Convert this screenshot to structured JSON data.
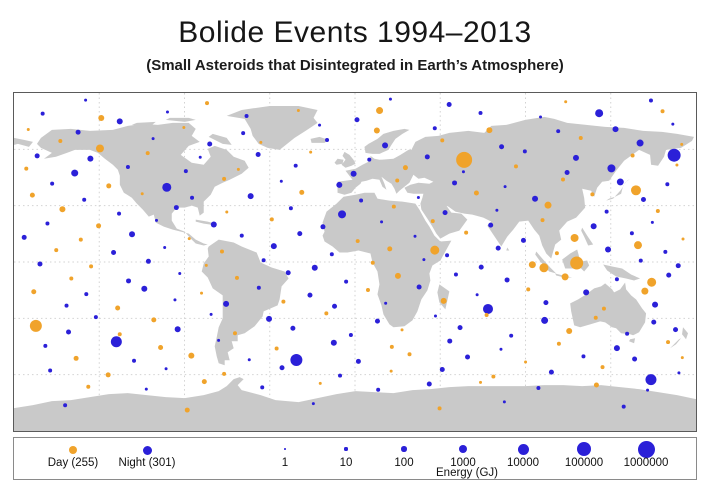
{
  "header": {
    "title": "Bolide Events 1994–2013",
    "subtitle": "(Small Asteroids that Disintegrated in Earth’s Atmosphere)"
  },
  "legend": {
    "day_label": "Day (255)",
    "night_label": "Night (301)",
    "day_color": "#F0A32B",
    "night_color": "#2B20D8",
    "day_r": 4,
    "night_r": 4.5,
    "energy_label": "Energy (GJ)",
    "energy_scale": [
      {
        "label": "1",
        "r": 0.9
      },
      {
        "label": "10",
        "r": 1.6
      },
      {
        "label": "100",
        "r": 2.7
      },
      {
        "label": "1000",
        "r": 4
      },
      {
        "label": "10000",
        "r": 5.5
      },
      {
        "label": "100000",
        "r": 7
      },
      {
        "label": "1000000",
        "r": 8.5
      }
    ]
  },
  "chart_data": {
    "type": "scatter",
    "title": "Bolide Events 1994–2013",
    "subtitle": "(Small Asteroids that Disintegrated in Earth’s Atmosphere)",
    "basemap": "equirectangular world map, longitude -180..180 maps to x 0..100%, latitude 90..-90 maps to y 0..100%",
    "land_color": "#c9c9c9",
    "grid": {
      "on": true,
      "lat_spacing_deg": 30,
      "lon_spacing_deg": 45
    },
    "series": [
      {
        "name": "Day",
        "count": 255,
        "color": "#F0A32B"
      },
      {
        "name": "Night",
        "count": 301,
        "color": "#2B20D8"
      }
    ],
    "size_encoding": {
      "label": "Energy (GJ)",
      "ticks": [
        1,
        10,
        100,
        1000,
        10000,
        100000,
        1000000
      ]
    },
    "points_format": "[x_pct, y_pct, radius_px, type] where type 0=Day(orange) 1=Night(blue); positions estimated from pixels",
    "points": [
      [
        10.5,
        2.1,
        1.5,
        1
      ],
      [
        28.3,
        3.0,
        2,
        0
      ],
      [
        55.2,
        1.8,
        1.5,
        1
      ],
      [
        63.8,
        3.4,
        2.5,
        1
      ],
      [
        80.9,
        2.6,
        1.5,
        0
      ],
      [
        93.4,
        2.2,
        2,
        1
      ],
      [
        4.2,
        6.1,
        2,
        1
      ],
      [
        12.8,
        7.4,
        3,
        0
      ],
      [
        22.5,
        5.6,
        1.5,
        1
      ],
      [
        34.1,
        6.8,
        2,
        1
      ],
      [
        41.7,
        5.2,
        1.5,
        0
      ],
      [
        50.3,
        7.9,
        2.5,
        1
      ],
      [
        53.6,
        5.2,
        3.5,
        0
      ],
      [
        68.4,
        5.9,
        2,
        1
      ],
      [
        77.2,
        7.1,
        1.5,
        1
      ],
      [
        85.8,
        6.0,
        4,
        1
      ],
      [
        95.1,
        5.4,
        2,
        0
      ],
      [
        2.1,
        10.8,
        1.5,
        0
      ],
      [
        9.4,
        11.6,
        2.5,
        1
      ],
      [
        15.5,
        8.4,
        3,
        1
      ],
      [
        24.9,
        10.2,
        1.5,
        0
      ],
      [
        33.6,
        11.9,
        2,
        1
      ],
      [
        44.8,
        9.5,
        1.5,
        1
      ],
      [
        53.2,
        11.1,
        3,
        0
      ],
      [
        61.7,
        10.4,
        2,
        1
      ],
      [
        69.7,
        11.0,
        3,
        0
      ],
      [
        79.8,
        11.3,
        2,
        1
      ],
      [
        88.2,
        10.7,
        3,
        1
      ],
      [
        96.6,
        9.2,
        1.5,
        1
      ],
      [
        6.8,
        14.2,
        2,
        0
      ],
      [
        12.6,
        16.4,
        4,
        0
      ],
      [
        20.4,
        13.5,
        1.5,
        1
      ],
      [
        28.7,
        15.1,
        2.5,
        1
      ],
      [
        36.2,
        14.6,
        1.5,
        0
      ],
      [
        45.9,
        13.9,
        2,
        1
      ],
      [
        54.4,
        15.5,
        3,
        1
      ],
      [
        62.8,
        14.0,
        2,
        0
      ],
      [
        71.5,
        15.9,
        2.5,
        1
      ],
      [
        83.1,
        13.3,
        2,
        0
      ],
      [
        91.8,
        14.8,
        3.5,
        1
      ],
      [
        97.9,
        15.2,
        1.5,
        0
      ],
      [
        3.4,
        18.6,
        2.5,
        1
      ],
      [
        11.2,
        19.4,
        3,
        1
      ],
      [
        19.6,
        17.8,
        2,
        0
      ],
      [
        27.3,
        19.0,
        1.5,
        1
      ],
      [
        35.8,
        18.2,
        2.5,
        1
      ],
      [
        43.5,
        17.5,
        1.5,
        0
      ],
      [
        52.1,
        19.7,
        2,
        1
      ],
      [
        60.6,
        18.9,
        2.5,
        1
      ],
      [
        66.0,
        19.8,
        8,
        0
      ],
      [
        74.9,
        17.3,
        2,
        1
      ],
      [
        82.4,
        19.2,
        3,
        1
      ],
      [
        90.7,
        18.5,
        2,
        0
      ],
      [
        96.8,
        18.4,
        6.5,
        1
      ],
      [
        1.8,
        22.4,
        2,
        0
      ],
      [
        8.9,
        23.7,
        3.5,
        1
      ],
      [
        16.7,
        21.9,
        2,
        1
      ],
      [
        25.2,
        23.1,
        2,
        1
      ],
      [
        32.9,
        22.6,
        1.5,
        0
      ],
      [
        41.3,
        21.5,
        2,
        1
      ],
      [
        49.8,
        23.9,
        3,
        1
      ],
      [
        57.4,
        22.1,
        2.5,
        0
      ],
      [
        65.9,
        23.3,
        1.5,
        1
      ],
      [
        73.6,
        21.7,
        2,
        0
      ],
      [
        81.1,
        23.5,
        2.5,
        1
      ],
      [
        87.6,
        22.3,
        4,
        1
      ],
      [
        97.2,
        21.3,
        1.5,
        0
      ],
      [
        5.6,
        26.8,
        2,
        1
      ],
      [
        13.9,
        27.5,
        2.5,
        0
      ],
      [
        22.4,
        27.9,
        4.5,
        1
      ],
      [
        30.8,
        25.4,
        2,
        0
      ],
      [
        39.2,
        26.1,
        1.5,
        1
      ],
      [
        47.7,
        27.2,
        3,
        1
      ],
      [
        56.2,
        25.9,
        2,
        0
      ],
      [
        64.6,
        26.6,
        2.5,
        1
      ],
      [
        72.0,
        27.7,
        1.5,
        1
      ],
      [
        80.5,
        25.6,
        2,
        0
      ],
      [
        88.9,
        26.3,
        3.5,
        1
      ],
      [
        91.2,
        28.8,
        5,
        0
      ],
      [
        95.8,
        27.0,
        2,
        1
      ],
      [
        2.7,
        30.2,
        2.5,
        0
      ],
      [
        10.3,
        31.6,
        2,
        1
      ],
      [
        18.8,
        29.8,
        1.5,
        0
      ],
      [
        26.1,
        31.0,
        2,
        1
      ],
      [
        34.7,
        30.5,
        3,
        1
      ],
      [
        42.2,
        29.4,
        2.5,
        0
      ],
      [
        50.9,
        31.8,
        2,
        1
      ],
      [
        59.3,
        30.9,
        1.5,
        1
      ],
      [
        67.8,
        29.6,
        2.5,
        0
      ],
      [
        76.4,
        31.3,
        3,
        1
      ],
      [
        84.8,
        30.0,
        2,
        0
      ],
      [
        92.3,
        31.5,
        2.5,
        1
      ],
      [
        7.1,
        34.4,
        3,
        0
      ],
      [
        15.4,
        35.7,
        2,
        1
      ],
      [
        23.8,
        33.9,
        2.5,
        1
      ],
      [
        31.2,
        35.2,
        1.5,
        0
      ],
      [
        40.6,
        34.1,
        2,
        1
      ],
      [
        48.1,
        35.9,
        4,
        1
      ],
      [
        55.7,
        33.6,
        2,
        0
      ],
      [
        63.2,
        35.4,
        2.5,
        1
      ],
      [
        70.8,
        34.7,
        1.5,
        1
      ],
      [
        78.3,
        33.2,
        3.5,
        0
      ],
      [
        86.9,
        35.1,
        2,
        1
      ],
      [
        94.4,
        34.9,
        2,
        0
      ],
      [
        4.9,
        38.6,
        2,
        1
      ],
      [
        12.4,
        39.3,
        2.5,
        0
      ],
      [
        20.9,
        37.7,
        1.5,
        1
      ],
      [
        29.3,
        38.9,
        3,
        1
      ],
      [
        37.8,
        37.4,
        2,
        0
      ],
      [
        45.3,
        39.6,
        2.5,
        1
      ],
      [
        53.9,
        38.1,
        1.5,
        1
      ],
      [
        61.4,
        37.9,
        2,
        0
      ],
      [
        69.9,
        39.1,
        2.5,
        1
      ],
      [
        77.5,
        37.6,
        2,
        0
      ],
      [
        85.0,
        39.4,
        3,
        1
      ],
      [
        93.6,
        38.3,
        1.5,
        1
      ],
      [
        1.5,
        42.7,
        2.5,
        1
      ],
      [
        9.8,
        43.4,
        2,
        0
      ],
      [
        17.3,
        41.8,
        3,
        1
      ],
      [
        25.7,
        43.1,
        1.5,
        0
      ],
      [
        33.4,
        42.2,
        2,
        1
      ],
      [
        41.9,
        41.6,
        2.5,
        1
      ],
      [
        50.4,
        43.8,
        2,
        0
      ],
      [
        58.8,
        42.4,
        1.5,
        1
      ],
      [
        66.3,
        41.3,
        2,
        0
      ],
      [
        74.7,
        43.6,
        2.5,
        1
      ],
      [
        82.2,
        42.9,
        4,
        0
      ],
      [
        90.6,
        41.5,
        2,
        1
      ],
      [
        91.5,
        45.0,
        4,
        0
      ],
      [
        98.1,
        43.2,
        1.5,
        0
      ],
      [
        6.2,
        46.5,
        2,
        0
      ],
      [
        14.6,
        47.2,
        2.5,
        1
      ],
      [
        22.1,
        45.7,
        1.5,
        1
      ],
      [
        30.5,
        46.9,
        2,
        0
      ],
      [
        38.1,
        45.3,
        3,
        1
      ],
      [
        46.6,
        47.7,
        2,
        1
      ],
      [
        55.1,
        46.1,
        2.5,
        0
      ],
      [
        61.7,
        46.5,
        4.5,
        0
      ],
      [
        63.5,
        48.0,
        2,
        1
      ],
      [
        71.0,
        45.9,
        2.5,
        1
      ],
      [
        79.6,
        47.4,
        2,
        0
      ],
      [
        87.1,
        46.3,
        3,
        1
      ],
      [
        95.5,
        47.0,
        2,
        1
      ],
      [
        3.8,
        50.6,
        2.5,
        1
      ],
      [
        11.3,
        51.3,
        2,
        0
      ],
      [
        19.7,
        49.8,
        2.5,
        1
      ],
      [
        28.2,
        51.0,
        1.5,
        0
      ],
      [
        36.6,
        49.5,
        2,
        1
      ],
      [
        44.1,
        51.7,
        3,
        1
      ],
      [
        52.6,
        50.2,
        2,
        0
      ],
      [
        60.1,
        49.3,
        1.5,
        1
      ],
      [
        68.5,
        51.5,
        2.5,
        1
      ],
      [
        76.0,
        50.8,
        3.5,
        0
      ],
      [
        82.5,
        50.3,
        6.5,
        0
      ],
      [
        91.9,
        49.6,
        2,
        1
      ],
      [
        97.4,
        51.1,
        2.5,
        1
      ],
      [
        8.4,
        54.9,
        2,
        0
      ],
      [
        16.8,
        55.6,
        2.5,
        1
      ],
      [
        24.3,
        53.4,
        1.5,
        1
      ],
      [
        32.7,
        54.7,
        2,
        0
      ],
      [
        40.2,
        53.2,
        2.5,
        1
      ],
      [
        48.7,
        55.8,
        2,
        1
      ],
      [
        56.3,
        54.1,
        3,
        0
      ],
      [
        64.8,
        53.7,
        2,
        1
      ],
      [
        72.3,
        55.3,
        2.5,
        1
      ],
      [
        77.7,
        51.7,
        4.5,
        0
      ],
      [
        80.8,
        54.4,
        3.5,
        0
      ],
      [
        88.4,
        55.1,
        2,
        1
      ],
      [
        93.5,
        56.0,
        4.5,
        0
      ],
      [
        96.0,
        53.9,
        2.5,
        1
      ],
      [
        2.9,
        58.8,
        2.5,
        0
      ],
      [
        10.6,
        59.5,
        2,
        1
      ],
      [
        19.1,
        57.9,
        3,
        1
      ],
      [
        27.5,
        59.2,
        1.5,
        0
      ],
      [
        35.9,
        57.6,
        2,
        1
      ],
      [
        43.4,
        59.8,
        2.5,
        1
      ],
      [
        51.9,
        58.3,
        2,
        0
      ],
      [
        59.4,
        57.4,
        2.5,
        1
      ],
      [
        67.9,
        59.7,
        1.5,
        1
      ],
      [
        75.4,
        58.1,
        2,
        0
      ],
      [
        83.9,
        59.0,
        3,
        1
      ],
      [
        92.5,
        58.6,
        3.5,
        0
      ],
      [
        7.7,
        62.9,
        2,
        1
      ],
      [
        15.2,
        63.6,
        2.5,
        0
      ],
      [
        23.6,
        61.2,
        1.5,
        1
      ],
      [
        31.1,
        62.4,
        3,
        1
      ],
      [
        39.5,
        61.7,
        2,
        0
      ],
      [
        47.0,
        63.1,
        2.5,
        1
      ],
      [
        54.5,
        62.2,
        1.5,
        1
      ],
      [
        63.0,
        61.5,
        3,
        0
      ],
      [
        69.5,
        63.9,
        5,
        1
      ],
      [
        78.0,
        62.0,
        2.5,
        1
      ],
      [
        86.5,
        63.8,
        2,
        0
      ],
      [
        94.0,
        62.6,
        3,
        1
      ],
      [
        3.2,
        68.9,
        6,
        0
      ],
      [
        12.0,
        66.3,
        2,
        1
      ],
      [
        20.5,
        67.1,
        2.5,
        0
      ],
      [
        28.9,
        65.5,
        1.5,
        1
      ],
      [
        37.4,
        66.8,
        3,
        1
      ],
      [
        45.8,
        65.2,
        2,
        0
      ],
      [
        53.3,
        67.5,
        2.5,
        1
      ],
      [
        61.8,
        66.0,
        1.5,
        1
      ],
      [
        69.3,
        65.7,
        2,
        0
      ],
      [
        77.8,
        67.3,
        3.5,
        1
      ],
      [
        85.3,
        66.5,
        2,
        0
      ],
      [
        93.8,
        67.8,
        2.5,
        1
      ],
      [
        8.0,
        70.7,
        2.5,
        1
      ],
      [
        15.5,
        71.4,
        2,
        0
      ],
      [
        24.0,
        69.9,
        3,
        1
      ],
      [
        32.4,
        71.1,
        2,
        0
      ],
      [
        40.9,
        69.6,
        2.5,
        1
      ],
      [
        49.4,
        71.6,
        2,
        1
      ],
      [
        56.9,
        70.1,
        1.5,
        0
      ],
      [
        65.4,
        69.4,
        2.5,
        1
      ],
      [
        72.9,
        71.8,
        2,
        1
      ],
      [
        81.4,
        70.4,
        3,
        0
      ],
      [
        89.9,
        71.2,
        2,
        1
      ],
      [
        97.0,
        70.0,
        2.5,
        1
      ],
      [
        4.6,
        74.8,
        2,
        1
      ],
      [
        15.0,
        73.6,
        5.5,
        1
      ],
      [
        21.5,
        75.3,
        2.5,
        0
      ],
      [
        30.0,
        73.2,
        1.5,
        1
      ],
      [
        38.5,
        75.6,
        2,
        0
      ],
      [
        46.9,
        73.9,
        3,
        1
      ],
      [
        55.4,
        75.1,
        2,
        0
      ],
      [
        63.9,
        73.4,
        2.5,
        1
      ],
      [
        71.4,
        75.8,
        1.5,
        1
      ],
      [
        79.9,
        74.2,
        2,
        0
      ],
      [
        88.4,
        75.5,
        3,
        1
      ],
      [
        95.9,
        73.7,
        2,
        0
      ],
      [
        9.1,
        78.5,
        2.5,
        0
      ],
      [
        17.6,
        79.2,
        2,
        1
      ],
      [
        26.0,
        77.7,
        3,
        0
      ],
      [
        34.5,
        78.9,
        1.5,
        1
      ],
      [
        41.4,
        79.0,
        6,
        1
      ],
      [
        50.5,
        79.4,
        2.5,
        1
      ],
      [
        58.0,
        77.3,
        2,
        0
      ],
      [
        66.5,
        78.1,
        2.5,
        1
      ],
      [
        75.0,
        79.6,
        1.5,
        0
      ],
      [
        83.5,
        77.9,
        2,
        1
      ],
      [
        91.0,
        78.7,
        2.5,
        1
      ],
      [
        98.0,
        78.3,
        1.5,
        0
      ],
      [
        5.3,
        82.1,
        2,
        1
      ],
      [
        13.8,
        83.4,
        2.5,
        0
      ],
      [
        22.3,
        81.6,
        1.5,
        1
      ],
      [
        30.8,
        83.1,
        2,
        0
      ],
      [
        39.3,
        81.3,
        2.5,
        1
      ],
      [
        47.8,
        83.6,
        2,
        1
      ],
      [
        55.3,
        82.3,
        1.5,
        0
      ],
      [
        62.8,
        81.8,
        2.5,
        1
      ],
      [
        70.3,
        83.9,
        2,
        0
      ],
      [
        78.8,
        82.6,
        2.5,
        1
      ],
      [
        86.3,
        81.1,
        2,
        0
      ],
      [
        93.4,
        84.8,
        5.5,
        1
      ],
      [
        97.5,
        82.8,
        1.5,
        1
      ],
      [
        10.9,
        86.9,
        2,
        0
      ],
      [
        19.4,
        87.6,
        1.5,
        1
      ],
      [
        27.9,
        85.4,
        2.5,
        0
      ],
      [
        36.4,
        87.1,
        2,
        1
      ],
      [
        44.9,
        85.9,
        1.5,
        0
      ],
      [
        53.4,
        87.8,
        2,
        1
      ],
      [
        60.9,
        86.1,
        2.5,
        1
      ],
      [
        68.4,
        85.6,
        1.5,
        0
      ],
      [
        76.9,
        87.3,
        2,
        1
      ],
      [
        85.4,
        86.4,
        2.5,
        0
      ],
      [
        92.9,
        87.9,
        1.5,
        1
      ],
      [
        7.5,
        92.4,
        2,
        1
      ],
      [
        25.4,
        93.8,
        2.5,
        0
      ],
      [
        43.9,
        91.9,
        1.5,
        1
      ],
      [
        62.4,
        93.3,
        2,
        0
      ],
      [
        71.9,
        91.4,
        1.5,
        1
      ],
      [
        89.4,
        92.8,
        2,
        1
      ]
    ]
  }
}
